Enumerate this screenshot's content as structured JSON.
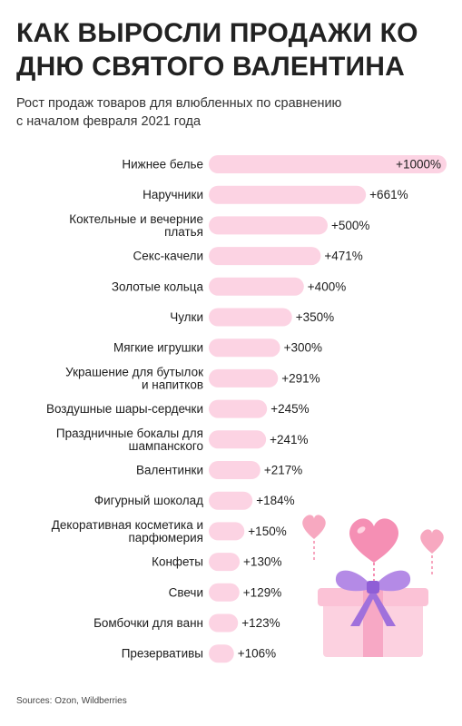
{
  "header": {
    "title_line1": "КАК ВЫРОСЛИ ПРОДАЖИ КО",
    "title_line2": "ДНЮ СВЯТОГО ВАЛЕНТИНА",
    "subtitle_line1": "Рост продаж товаров для влюбленных по сравнению",
    "subtitle_line2": "с началом февраля 2021 года"
  },
  "footer": {
    "source": "Sources: Ozon, Wildberries"
  },
  "colors": {
    "bar": "#fcd3e3",
    "label": "#1d1d1d",
    "value": "#1d1d1d"
  },
  "illustration": {
    "icon": "valentine-gift-icon"
  },
  "chart_data": {
    "type": "bar",
    "orientation": "horizontal",
    "categories": [
      [
        "Нижнее белье"
      ],
      [
        "Наручники"
      ],
      [
        "Коктельные и вечерние",
        "платья"
      ],
      [
        "Секс-качели"
      ],
      [
        "Золотые кольца"
      ],
      [
        "Чулки"
      ],
      [
        "Мягкие игрушки"
      ],
      [
        "Украшение для бутылок",
        "и напитков"
      ],
      [
        "Воздушные шары-сердечки"
      ],
      [
        "Праздничные бокалы для",
        "шампанского"
      ],
      [
        "Валентинки"
      ],
      [
        "Фигурный шоколад"
      ],
      [
        "Декоративная косметика и",
        "парфюмерия"
      ],
      [
        "Конфеты"
      ],
      [
        "Свечи"
      ],
      [
        "Бомбочки для ванн"
      ],
      [
        "Презервативы"
      ]
    ],
    "values": [
      1000,
      661,
      500,
      471,
      400,
      350,
      300,
      291,
      245,
      241,
      217,
      184,
      150,
      130,
      129,
      123,
      106
    ],
    "value_labels": [
      "+1000%",
      "+661%",
      "+500%",
      "+471%",
      "+400%",
      "+350%",
      "+300%",
      "+291%",
      "+245%",
      "+241%",
      "+217%",
      "+184%",
      "+150%",
      "+130%",
      "+129%",
      "+123%",
      "+106%"
    ],
    "xlim": [
      0,
      1000
    ],
    "grid": false,
    "legend": "none"
  }
}
